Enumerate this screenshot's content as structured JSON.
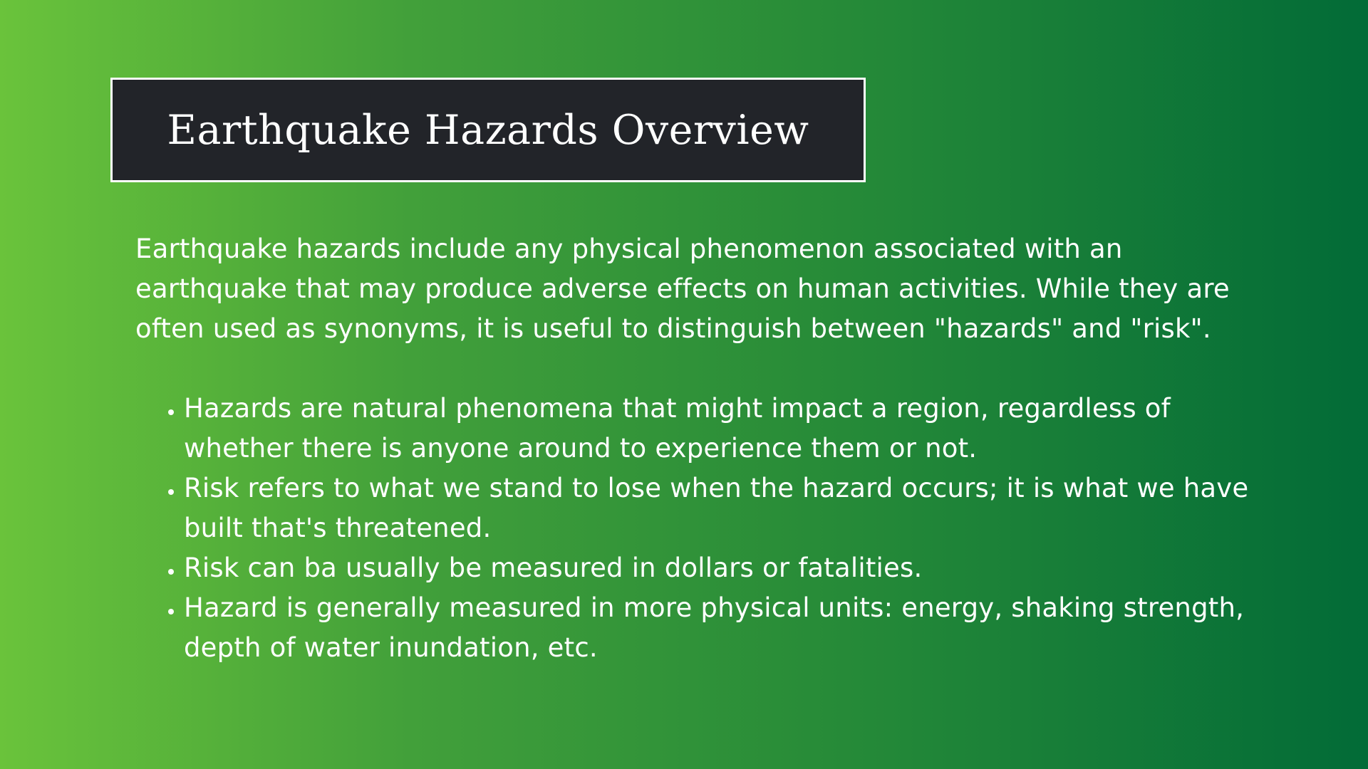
{
  "slide": {
    "title": "Earthquake Hazards Overview",
    "intro": "Earthquake hazards include any physical phenomenon associated with an earthquake that may produce adverse effects on human activities. While they are often used as synonyms, it is useful to distinguish between \"hazards\" and \"risk\".",
    "bullets": [
      "Hazards are natural phenomena that might impact a region, regardless of whether there is anyone around to experience them or not.",
      "Risk refers to what we stand to lose when the hazard occurs; it is what we have built that's threatened.",
      "Risk can ba usually be measured in dollars or fatalities.",
      "Hazard is generally measured in more physical units: energy, shaking strength, depth of water inundation, etc."
    ]
  },
  "colors": {
    "gradient_start": "#6ac33b",
    "gradient_end": "#026b37",
    "title_box_bg": "#222429",
    "text": "#ffffff"
  }
}
